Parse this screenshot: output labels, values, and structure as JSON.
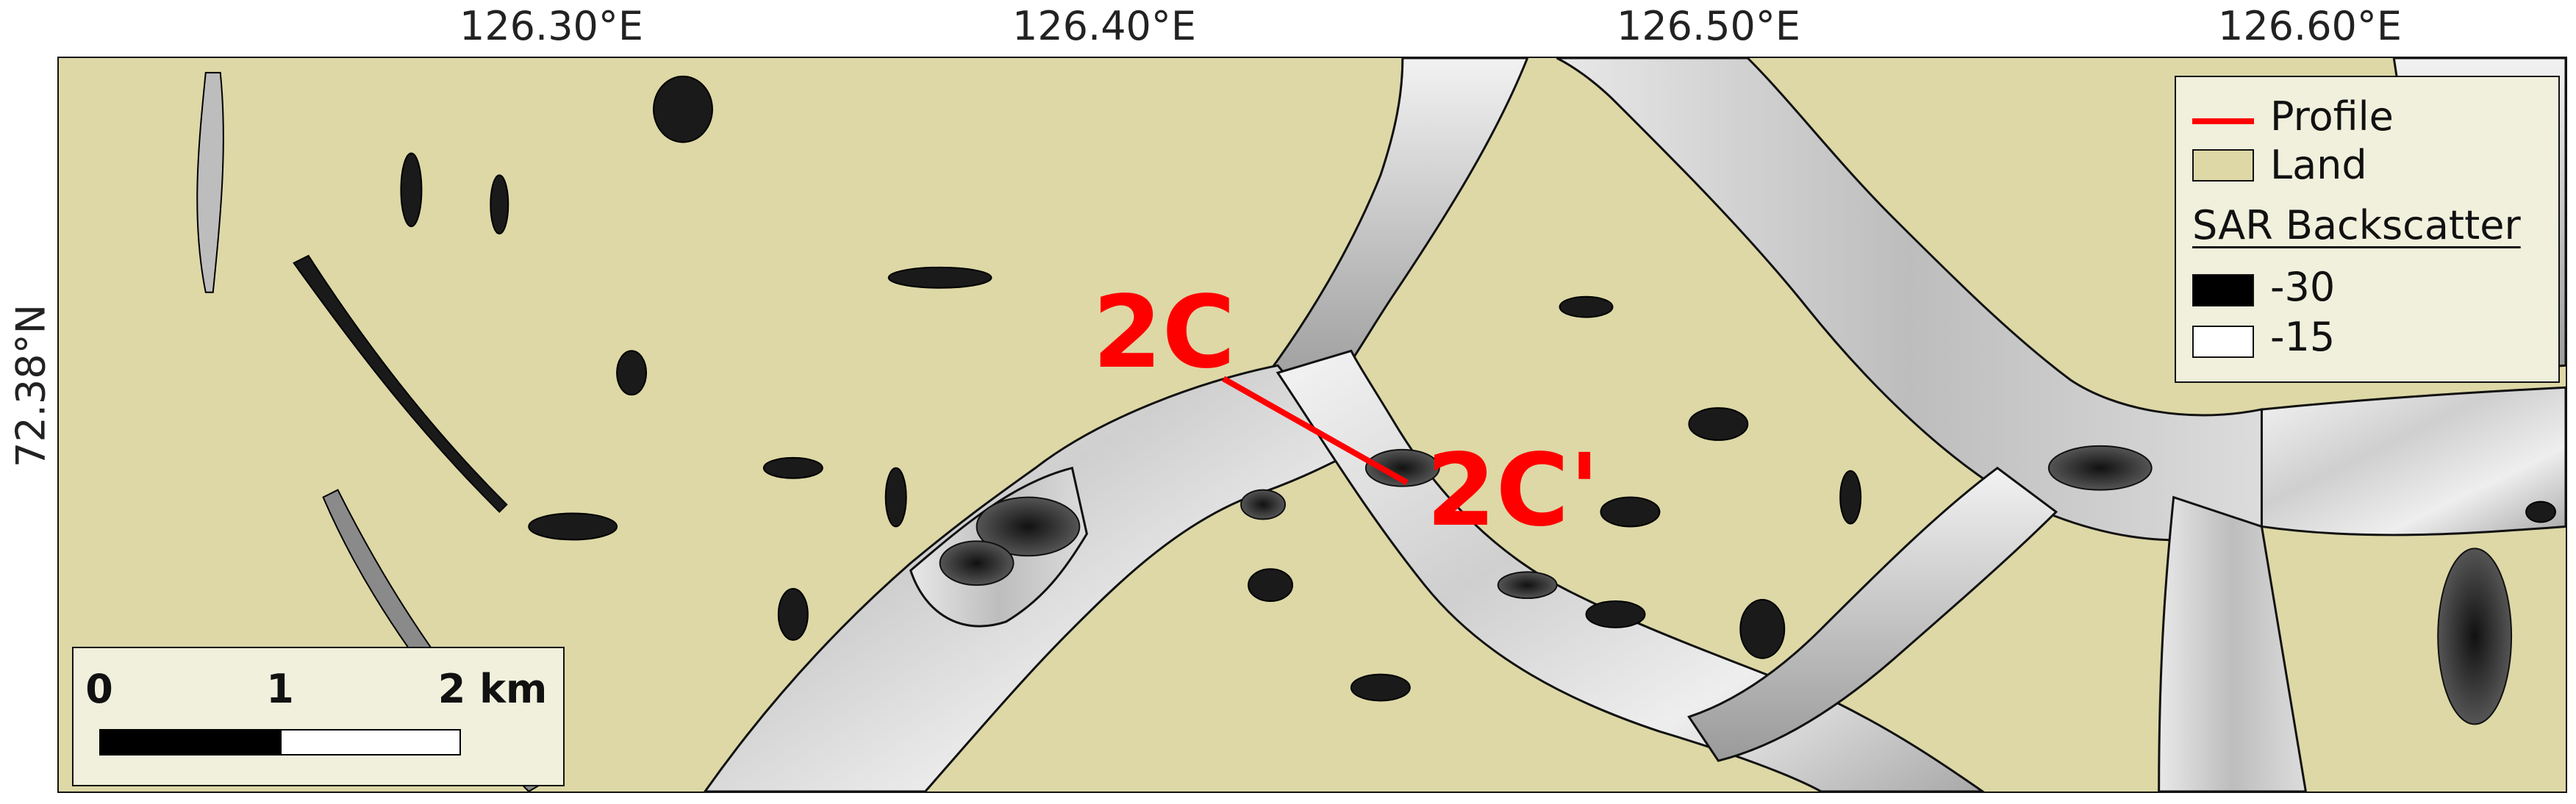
{
  "axes": {
    "longitude_labels": [
      "126.30°E",
      "126.40°E",
      "126.50°E",
      "126.60°E"
    ],
    "latitude_labels": [
      "72.38°N"
    ]
  },
  "profile": {
    "start_label": "2C",
    "end_label": "2C'",
    "color": "#ff0000"
  },
  "legend": {
    "profile_label": "Profile",
    "land_label": "Land",
    "sar_header": "SAR Backscatter",
    "sar_min_label": "-30",
    "sar_max_label": "-15",
    "land_color": "#ddd8a6",
    "sar_min_color": "#000000",
    "sar_max_color": "#ffffff"
  },
  "scalebar": {
    "ticks": [
      "0",
      "1",
      "2 km"
    ]
  }
}
